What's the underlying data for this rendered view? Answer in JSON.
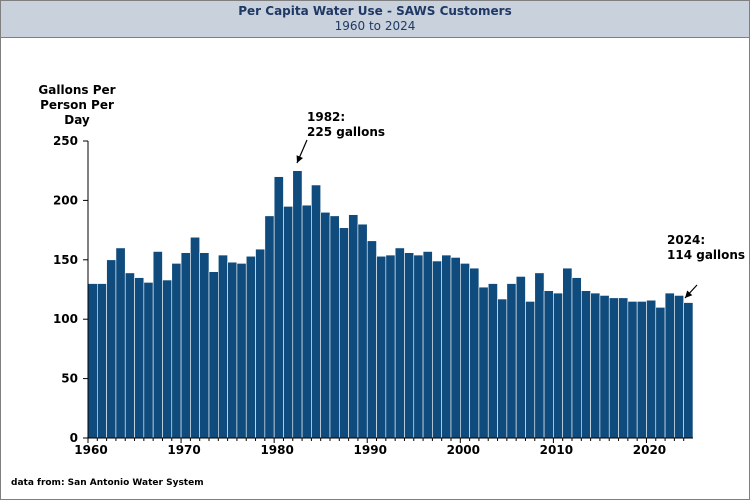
{
  "header": {
    "title": "Per Capita Water Use - SAWS Customers",
    "subtitle": "1960 to 2024"
  },
  "footnote": "data from:  San Antonio Water System",
  "colors": {
    "bar": "#0f4b7c",
    "bar_edge": "#ffffff",
    "header_bg": "#c9d2dc",
    "title_text": "#1f3864"
  },
  "chart_data": {
    "type": "bar",
    "title": "Per Capita Water Use - SAWS Customers",
    "subtitle": "1960 to 2024",
    "ylabel": "Gallons Per\nPerson Per\nDay",
    "xlabel": "",
    "ylim": [
      0,
      250
    ],
    "yticks": [
      0,
      50,
      100,
      150,
      200,
      250
    ],
    "xticks": [
      1960,
      1970,
      1980,
      1990,
      2000,
      2010,
      2020
    ],
    "grid": false,
    "x": [
      1960,
      1961,
      1962,
      1963,
      1964,
      1965,
      1966,
      1967,
      1968,
      1969,
      1970,
      1971,
      1972,
      1973,
      1974,
      1975,
      1976,
      1977,
      1978,
      1979,
      1980,
      1981,
      1982,
      1983,
      1984,
      1985,
      1986,
      1987,
      1988,
      1989,
      1990,
      1991,
      1992,
      1993,
      1994,
      1995,
      1996,
      1997,
      1998,
      1999,
      2000,
      2001,
      2002,
      2003,
      2004,
      2005,
      2006,
      2007,
      2008,
      2009,
      2010,
      2011,
      2012,
      2013,
      2014,
      2015,
      2016,
      2017,
      2018,
      2019,
      2020,
      2021,
      2022,
      2023,
      2024
    ],
    "values": [
      130,
      130,
      150,
      160,
      139,
      135,
      131,
      157,
      133,
      147,
      156,
      169,
      156,
      140,
      154,
      148,
      147,
      153,
      159,
      187,
      220,
      195,
      225,
      196,
      213,
      190,
      187,
      177,
      188,
      180,
      166,
      153,
      154,
      160,
      156,
      154,
      157,
      149,
      154,
      152,
      147,
      143,
      127,
      130,
      117,
      130,
      136,
      115,
      139,
      124,
      122,
      143,
      135,
      124,
      122,
      120,
      118,
      118,
      115,
      115,
      116,
      110,
      122,
      120,
      114
    ],
    "annotations": [
      {
        "year": 1982,
        "value": 225,
        "line1": "1982:",
        "line2": "225 gallons"
      },
      {
        "year": 2024,
        "value": 114,
        "line1": "2024:",
        "line2": "114 gallons"
      }
    ]
  }
}
